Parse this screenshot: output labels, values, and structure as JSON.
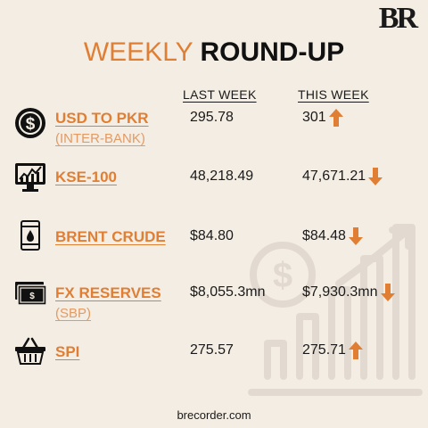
{
  "brand": {
    "logo_text": "BR"
  },
  "title": {
    "part1": "WEEKLY",
    "part2": "ROUND-UP"
  },
  "columns": {
    "last_week": "LAST WEEK",
    "this_week": "THIS WEEK"
  },
  "rows": [
    {
      "label": "USD TO PKR",
      "sublabel": "(INTER-BANK)",
      "last_week": "295.78",
      "this_week": "301",
      "trend": "up",
      "icon": "dollar-coin-icon"
    },
    {
      "label": "KSE-100",
      "last_week": "48,218.49",
      "this_week": "47,671.21",
      "trend": "down",
      "icon": "stock-monitor-icon"
    },
    {
      "label": "BRENT CRUDE",
      "last_week": "$84.80",
      "this_week": "$84.48",
      "trend": "down",
      "icon": "oil-barrel-icon"
    },
    {
      "label": "FX RESERVES",
      "sublabel": "(SBP)",
      "last_week": "$8,055.3mn",
      "this_week": "$7,930.3mn",
      "trend": "down",
      "icon": "banknote-icon"
    },
    {
      "label": "SPI",
      "last_week": "275.57",
      "this_week": "275.71",
      "trend": "up",
      "icon": "shopping-basket-icon"
    }
  ],
  "footer": {
    "website": "brecorder.com"
  },
  "colors": {
    "accent": "#e07f34",
    "background": "#f4ede3",
    "text": "#1a1a1a"
  }
}
